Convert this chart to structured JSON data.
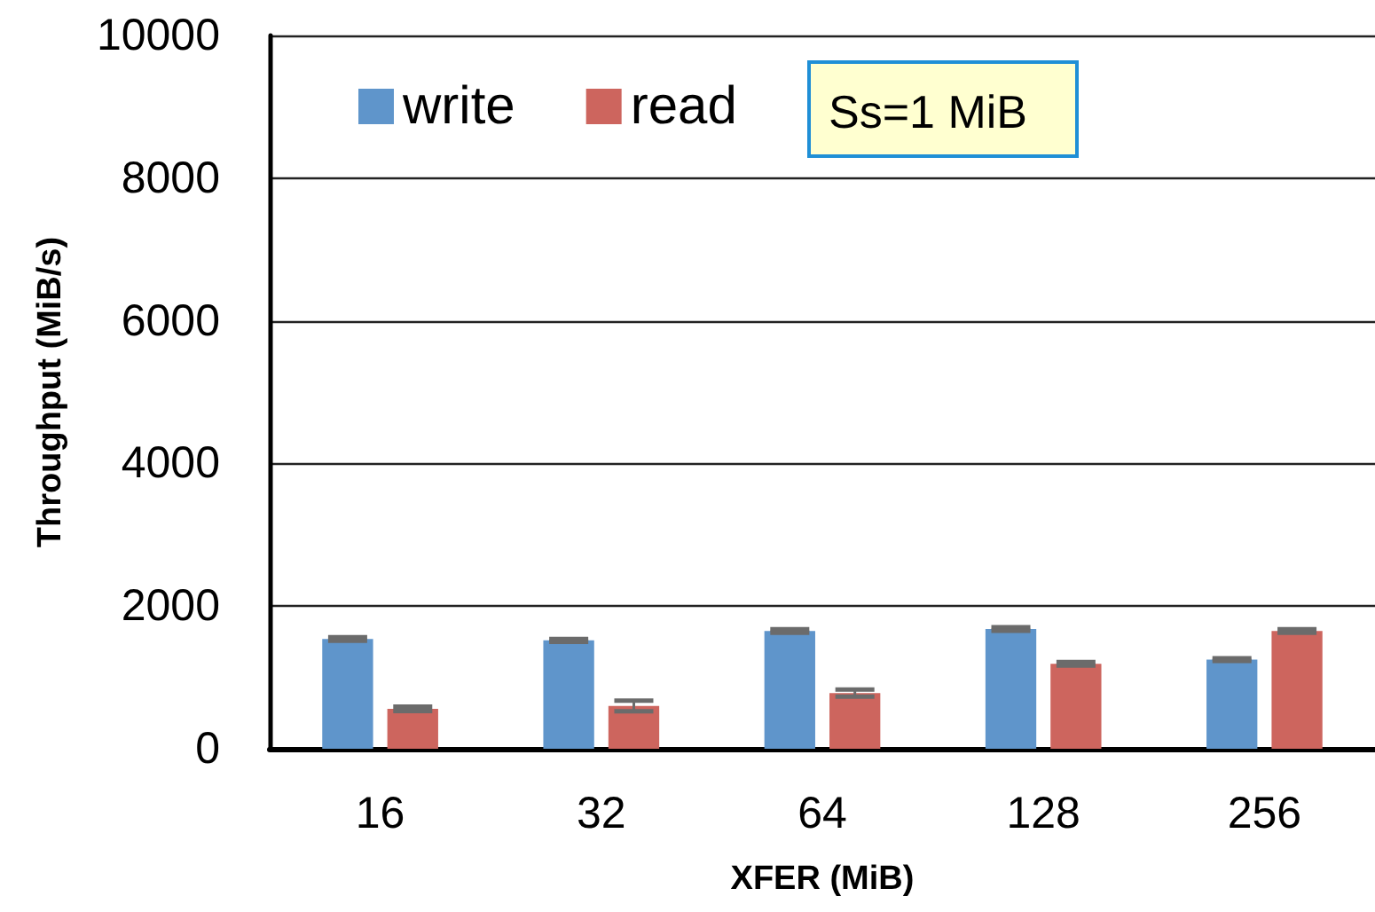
{
  "chart_data": {
    "type": "bar",
    "xlabel": "XFER (MiB)",
    "ylabel": "Throughput (MiB/s)",
    "categories": [
      "16",
      "32",
      "64",
      "128",
      "256"
    ],
    "series": [
      {
        "name": "write",
        "color": "#5f95cb",
        "values": [
          1540,
          1520,
          1650,
          1680,
          1250
        ],
        "errors": [
          25,
          20,
          25,
          25,
          20
        ]
      },
      {
        "name": "read",
        "color": "#cd655e",
        "values": [
          560,
          600,
          780,
          1190,
          1650
        ],
        "errors": [
          30,
          75,
          50,
          25,
          25
        ]
      }
    ],
    "ylim": [
      0,
      10000
    ],
    "yticks": [
      0,
      2000,
      4000,
      6000,
      8000,
      10000
    ],
    "grid": "y",
    "legend": "top left",
    "annotations": [
      "Ss=1 MiB"
    ]
  }
}
